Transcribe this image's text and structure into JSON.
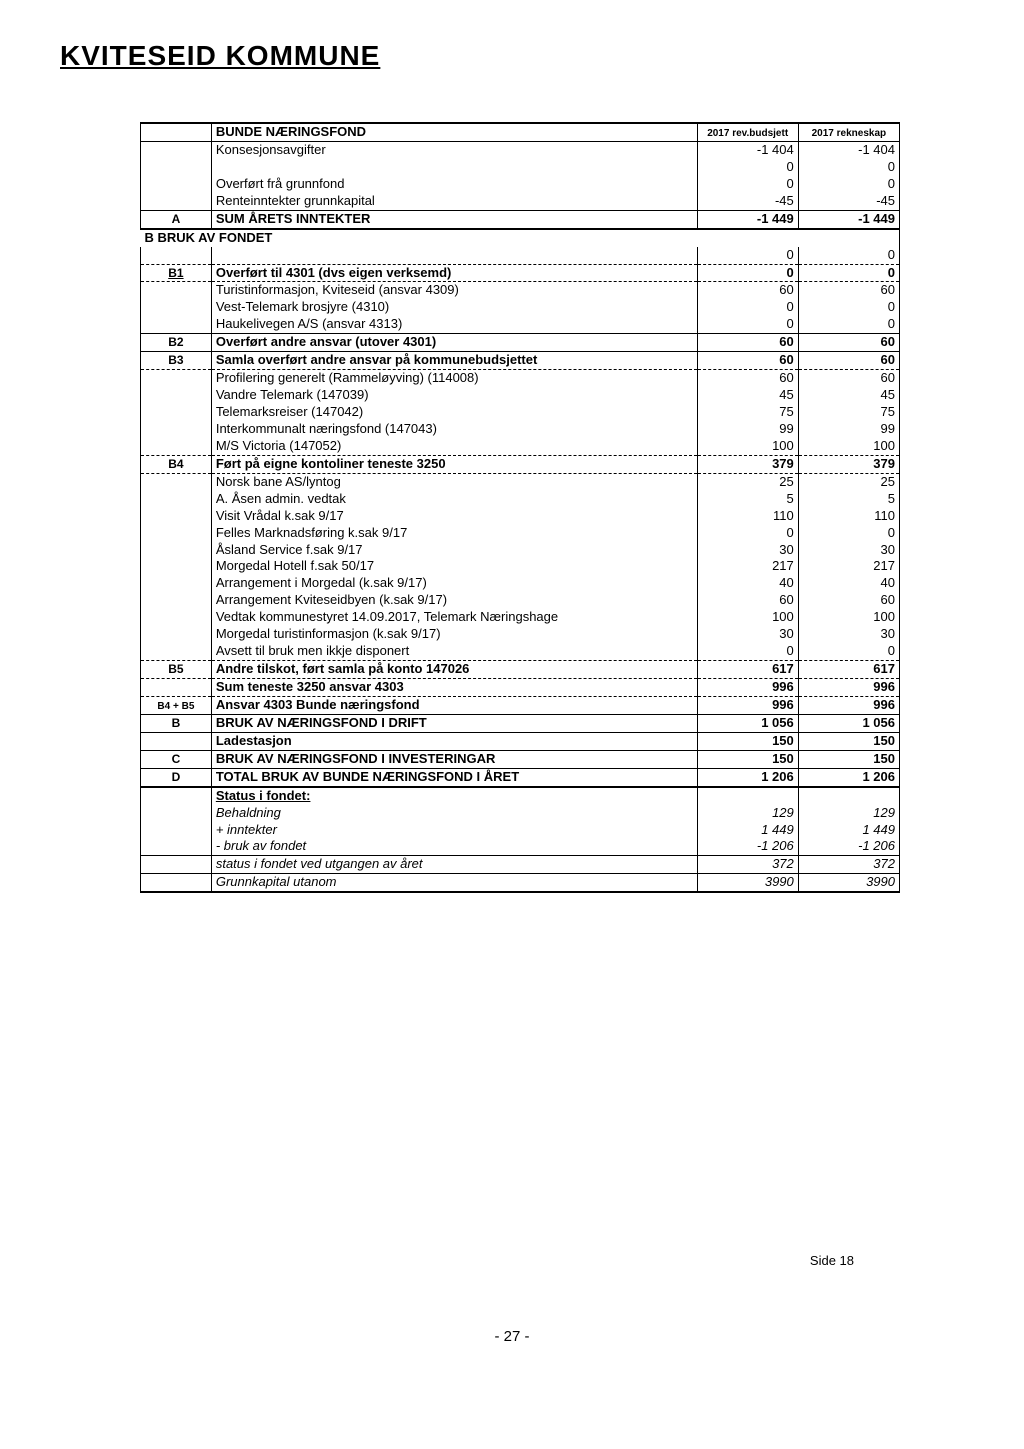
{
  "page": {
    "title": "KVITESEID KOMMUNE",
    "side": "Side 18",
    "footer": "- 27 -"
  },
  "head": {
    "title": "BUNDE NÆRINGSFOND",
    "h1": "2017 rev.budsjett",
    "h2": "2017 rekneskap"
  },
  "rows": [
    {
      "c": "",
      "l": "Konsesjonsavgifter",
      "v1": "-1 404",
      "v2": "-1 404"
    },
    {
      "c": "",
      "l": "",
      "v1": "0",
      "v2": "0"
    },
    {
      "c": "",
      "l": "Overført frå grunnfond",
      "v1": "0",
      "v2": "0"
    },
    {
      "c": "",
      "l": "Renteinntekter grunnkapital",
      "v1": "-45",
      "v2": "-45",
      "bbot": true
    },
    {
      "c": "A",
      "l": "SUM ÅRETS INNTEKTER",
      "v1": "-1 449",
      "v2": "-1 449",
      "bold": true,
      "bbot2": true
    },
    {
      "c": "B BRUK AV FONDET",
      "span": true,
      "bold": true,
      "noLR": true
    },
    {
      "c": "",
      "l": "",
      "v1": "0",
      "v2": "0",
      "dash": true
    },
    {
      "c": "B1",
      "l": "Overført til 4301 (dvs eigen verksemd)",
      "v1": "0",
      "v2": "0",
      "bold": true,
      "cUnd": true,
      "dash": true
    },
    {
      "c": "",
      "l": "Turistinformasjon, Kviteseid (ansvar 4309)",
      "v1": "60",
      "v2": "60"
    },
    {
      "c": "",
      "l": "Vest-Telemark brosjyre (4310)",
      "v1": "0",
      "v2": "0"
    },
    {
      "c": "",
      "l": "Haukelivegen A/S (ansvar 4313)",
      "v1": "0",
      "v2": "0",
      "bbot": true
    },
    {
      "c": "B2",
      "l": "Overført andre ansvar (utover 4301)",
      "v1": "60",
      "v2": "60",
      "bold": true,
      "bbot": true
    },
    {
      "c": "B3",
      "l": "Samla overført andre ansvar på kommunebudsjettet",
      "v1": "60",
      "v2": "60",
      "bold": true,
      "dash": true
    },
    {
      "c": "",
      "l": "Profilering generelt (Rammeløyving) (114008)",
      "v1": "60",
      "v2": "60"
    },
    {
      "c": "",
      "l": "Vandre Telemark (147039)",
      "v1": "45",
      "v2": "45"
    },
    {
      "c": "",
      "l": "Telemarksreiser (147042)",
      "v1": "75",
      "v2": "75"
    },
    {
      "c": "",
      "l": "Interkommunalt næringsfond (147043)",
      "v1": "99",
      "v2": "99"
    },
    {
      "c": "",
      "l": "M/S Victoria (147052)",
      "v1": "100",
      "v2": "100",
      "dash": true
    },
    {
      "c": "B4",
      "l": "Ført på eigne kontoliner teneste 3250",
      "v1": "379",
      "v2": "379",
      "bold": true,
      "dash": true
    },
    {
      "c": "",
      "l": "Norsk bane AS/lyntog",
      "v1": "25",
      "v2": "25"
    },
    {
      "c": "",
      "l": "A. Åsen admin. vedtak",
      "v1": "5",
      "v2": "5"
    },
    {
      "c": "",
      "l": "Visit Vrådal k.sak 9/17",
      "v1": "110",
      "v2": "110"
    },
    {
      "c": "",
      "l": "Felles Marknadsføring k.sak 9/17",
      "v1": "0",
      "v2": "0"
    },
    {
      "c": "",
      "l": "Åsland Service  f.sak 9/17",
      "v1": "30",
      "v2": "30"
    },
    {
      "c": "",
      "l": "Morgedal Hotell f.sak 50/17",
      "v1": "217",
      "v2": "217"
    },
    {
      "c": "",
      "l": "Arrangement i  Morgedal (k.sak 9/17)",
      "v1": "40",
      "v2": "40"
    },
    {
      "c": "",
      "l": "Arrangement Kviteseidbyen (k.sak 9/17)",
      "v1": "60",
      "v2": "60"
    },
    {
      "c": "",
      "l": "Vedtak kommunestyret 14.09.2017, Telemark Næringshage",
      "v1": "100",
      "v2": "100"
    },
    {
      "c": "",
      "l": "Morgedal turistinformasjon (k.sak 9/17)",
      "v1": "30",
      "v2": "30"
    },
    {
      "c": "",
      "l": "Avsett til bruk men ikkje disponert",
      "v1": "0",
      "v2": "0",
      "dash": true
    },
    {
      "c": "B5",
      "l": "Andre tilskot, ført samla på konto 147026",
      "v1": "617",
      "v2": "617",
      "bold": true,
      "dash": true
    },
    {
      "c": "",
      "l": "Sum teneste 3250 ansvar 4303",
      "v1": "996",
      "v2": "996",
      "bold": true,
      "dash": true
    },
    {
      "c": "B4 + B5",
      "l": "Ansvar 4303 Bunde næringsfond",
      "v1": "996",
      "v2": "996",
      "bold": true,
      "bbot": true,
      "cSmall": true
    },
    {
      "c": "B",
      "l": "BRUK AV NÆRINGSFOND I DRIFT",
      "v1": "1 056",
      "v2": "1 056",
      "bold": true,
      "bbot": true
    },
    {
      "c": "",
      "l": "Ladestasjon",
      "v1": "150",
      "v2": "150",
      "bold": true,
      "bbot": true
    },
    {
      "c": "C",
      "l": "BRUK AV NÆRINGSFOND I INVESTERINGAR",
      "v1": "150",
      "v2": "150",
      "bold": true,
      "bbot": true
    },
    {
      "c": "D",
      "l": "TOTAL BRUK AV BUNDE NÆRINGSFOND I ÅRET",
      "v1": "1 206",
      "v2": "1 206",
      "bold": true,
      "bbot2": true
    },
    {
      "c": "",
      "l": "Status i fondet:",
      "v1": "",
      "v2": "",
      "bold": true,
      "lUnd": true
    },
    {
      "c": "",
      "l": "Behaldning",
      "v1": "129",
      "v2": "129",
      "italic": true
    },
    {
      "c": "",
      "l": " + inntekter",
      "v1": "1 449",
      "v2": "1 449",
      "italic": true
    },
    {
      "c": "",
      "l": " - bruk av fondet",
      "v1": "-1 206",
      "v2": "-1 206",
      "italic": true,
      "bbot": true
    },
    {
      "c": "",
      "l": "status i fondet ved utgangen av året",
      "v1": "372",
      "v2": "372",
      "italic": true,
      "bbot": true
    },
    {
      "c": "",
      "l": "Grunnkapital utanom",
      "v1": "3990",
      "v2": "3990",
      "italic": true,
      "bbot2": true
    }
  ]
}
